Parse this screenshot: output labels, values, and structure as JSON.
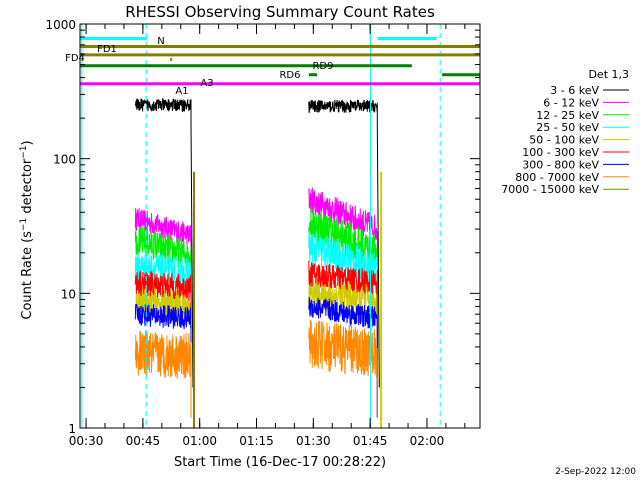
{
  "chart_data": {
    "type": "line",
    "title": "RHESSI Observing Summary Count Rates",
    "xlabel": "Start Time (16-Dec-17 00:28:22)",
    "ylabel": "Count Rate (s⁻¹ detector⁻¹)",
    "ylabel_base": "Count Rate (s",
    "ylabel_mid": " detector",
    "ylabel_end": ")",
    "ylabel_sup": "−1",
    "yscale": "log",
    "ylim": [
      1,
      1000
    ],
    "xlim_minutes": [
      28.4,
      134.0
    ],
    "x_ticks": [
      {
        "label": "00:30",
        "min": 30
      },
      {
        "label": "00:45",
        "min": 45
      },
      {
        "label": "01:00",
        "min": 60
      },
      {
        "label": "01:15",
        "min": 75
      },
      {
        "label": "01:30",
        "min": 90
      },
      {
        "label": "01:45",
        "min": 105
      },
      {
        "label": "02:00",
        "min": 120
      }
    ],
    "y_ticks": [
      {
        "label": "1",
        "value": 1
      },
      {
        "label": "10",
        "value": 10
      },
      {
        "label": "100",
        "value": 100
      },
      {
        "label": "1000",
        "value": 1000
      }
    ],
    "legend_title": "Det 1,3",
    "legend_position": "right",
    "series": [
      {
        "name": "3 - 6 keV",
        "color": "#000000",
        "segments": [
          {
            "x0": 43,
            "x1": 57.7,
            "level": 250,
            "noise": 0.05,
            "tail": "drop"
          },
          {
            "x0": 88.8,
            "x1": 106.9,
            "level": 245,
            "noise": 0.05,
            "tail": "drop"
          }
        ]
      },
      {
        "name": "6 - 12 keV",
        "color": "#ff00ff",
        "segments": [
          {
            "x0": 43,
            "x1": 57.7,
            "level": 36,
            "end": 27,
            "noise": 0.09
          },
          {
            "x0": 88.8,
            "x1": 106.9,
            "level": 50,
            "end": 30,
            "noise": 0.11
          }
        ]
      },
      {
        "name": "12 - 25 keV",
        "color": "#00ee00",
        "segments": [
          {
            "x0": 43,
            "x1": 57.7,
            "level": 25,
            "end": 19,
            "noise": 0.12
          },
          {
            "x0": 88.8,
            "x1": 106.9,
            "level": 34,
            "end": 20,
            "noise": 0.14
          }
        ]
      },
      {
        "name": "25 - 50 keV",
        "color": "#00ffff",
        "segments": [
          {
            "x0": 43,
            "x1": 57.7,
            "level": 16,
            "end": 14,
            "noise": 0.12
          },
          {
            "x0": 88.8,
            "x1": 106.9,
            "level": 22,
            "end": 15,
            "noise": 0.14
          }
        ]
      },
      {
        "name": "50 - 100 keV",
        "color": "#cccc00",
        "segments": [
          {
            "x0": 43,
            "x1": 57.7,
            "level": 9,
            "end": 8,
            "noise": 0.12
          },
          {
            "x0": 88.8,
            "x1": 106.9,
            "level": 10,
            "end": 9,
            "noise": 0.13
          }
        ]
      },
      {
        "name": "100 - 300 keV",
        "color": "#ff0000",
        "segments": [
          {
            "x0": 43,
            "x1": 57.7,
            "level": 12,
            "end": 11,
            "noise": 0.1
          },
          {
            "x0": 88.8,
            "x1": 106.9,
            "level": 14,
            "end": 12,
            "noise": 0.1
          }
        ]
      },
      {
        "name": "300 - 800 keV",
        "color": "#0000ff",
        "segments": [
          {
            "x0": 43,
            "x1": 57.7,
            "level": 7,
            "end": 6.5,
            "noise": 0.09
          },
          {
            "x0": 88.8,
            "x1": 106.9,
            "level": 8,
            "end": 6.5,
            "noise": 0.09
          }
        ]
      },
      {
        "name": "800 - 7000 keV",
        "color": "#ff8800",
        "segments": [
          {
            "x0": 43,
            "x1": 57.7,
            "level": 3.6,
            "end": 3.4,
            "noise": 0.18
          },
          {
            "x0": 88.8,
            "x1": 106.9,
            "level": 4.2,
            "end": 3.6,
            "noise": 0.2
          }
        ]
      },
      {
        "name": "7000 - 15000 keV",
        "color": "#888800",
        "segments": []
      }
    ],
    "flag_bars": [
      {
        "label": "N",
        "color": "#00ffff",
        "level": 780,
        "spans": [
          [
            28.4,
            46
          ],
          [
            107,
            122.5
          ]
        ]
      },
      {
        "label": "FD1",
        "color": "#808000",
        "level": 680,
        "spans": [
          [
            28.4,
            134
          ]
        ]
      },
      {
        "label": "FD4",
        "color": "#808000",
        "level": 590,
        "spans": [
          [
            28.4,
            134
          ]
        ]
      },
      {
        "label": "RD9",
        "color": "#008000",
        "level": 490,
        "spans": [
          [
            28.4,
            116
          ]
        ]
      },
      {
        "label": "RD6",
        "color": "#008000",
        "level": 420,
        "spans": [
          [
            88.8,
            91
          ],
          [
            124,
            134
          ]
        ]
      },
      {
        "label": "A1",
        "color": "#ff00ff",
        "level": 360,
        "spans": [
          [
            28.4,
            134
          ]
        ]
      },
      {
        "label": "A3",
        "color": "#ff00ff",
        "level": 360,
        "spans": []
      }
    ],
    "night_lines": [
      {
        "min": 28.9,
        "style": "solid"
      },
      {
        "min": 45.9,
        "style": "dashed"
      },
      {
        "min": 105.1,
        "style": "solid"
      },
      {
        "min": 123.5,
        "style": "dashed"
      }
    ],
    "saa_lines": [
      {
        "min": 58.5,
        "color": "#808000"
      },
      {
        "min": 107.9,
        "color": "#cccc00"
      }
    ],
    "footer_date": "2-Sep-2022 12:00"
  }
}
